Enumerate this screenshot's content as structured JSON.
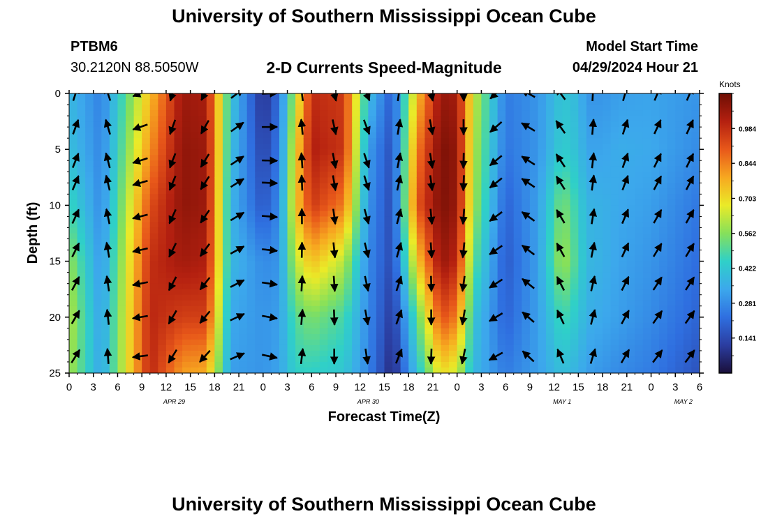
{
  "header": {
    "title": "University of Southern Mississippi Ocean Cube",
    "station": "PTBM6",
    "coords": "30.2120N  88.5050W",
    "subtitle": "2-D Currents Speed-Magnitude",
    "model_start_label": "Model Start Time",
    "model_start_value": "04/29/2024 Hour 21"
  },
  "footer": {
    "title": "University of Southern Mississippi Ocean Cube"
  },
  "chart_data": {
    "type": "heatmap",
    "title": "2-D Currents Speed-Magnitude",
    "xlabel": "Forecast Time(Z)",
    "ylabel": "Depth (ft)",
    "x_unit": "hours since APR 29 00Z",
    "x_range": [
      0,
      78
    ],
    "x_ticks": [
      0,
      3,
      6,
      9,
      12,
      15,
      18,
      21,
      24,
      27,
      30,
      33,
      36,
      39,
      42,
      45,
      48,
      51,
      54,
      57,
      60,
      63,
      66,
      69,
      72,
      75,
      78
    ],
    "x_tick_labels": [
      "0",
      "3",
      "6",
      "9",
      "12",
      "15",
      "18",
      "21",
      "0",
      "3",
      "6",
      "9",
      "12",
      "15",
      "18",
      "21",
      "0",
      "3",
      "6",
      "9",
      "12",
      "15",
      "18",
      "21",
      "0",
      "3",
      "6"
    ],
    "date_labels": [
      {
        "x": 13,
        "label": "APR 29"
      },
      {
        "x": 37,
        "label": "APR 30"
      },
      {
        "x": 61,
        "label": "MAY 1"
      },
      {
        "x": 76,
        "label": "MAY 2"
      }
    ],
    "y_range": [
      0,
      25
    ],
    "y_ticks": [
      0,
      5,
      10,
      15,
      20,
      25
    ],
    "y_tick_labels": [
      "0",
      "5",
      "10",
      "15",
      "20",
      "25"
    ],
    "colorbar": {
      "unit": "Knots",
      "min": 0.0,
      "max": 1.125,
      "ticks": [
        0.141,
        0.281,
        0.422,
        0.562,
        0.703,
        0.844,
        0.984
      ],
      "tick_labels": [
        "0.141",
        "0.281",
        "0.422",
        "0.562",
        "0.703",
        "0.844",
        "0.984"
      ],
      "colors": [
        "#1a0f3a",
        "#2b3da0",
        "#2f6fe0",
        "#3ca8ec",
        "#2fd0c8",
        "#86e05a",
        "#eaea28",
        "#f7a820",
        "#e8581a",
        "#b42010",
        "#6e0e04"
      ]
    },
    "speed_field": {
      "time_nodes": [
        0,
        4,
        10,
        14,
        17,
        20,
        24,
        26,
        28,
        30,
        34,
        37,
        40,
        43,
        46,
        48,
        50,
        54,
        58,
        61,
        63,
        64,
        66,
        68,
        72,
        78
      ],
      "depth_nodes": [
        0,
        5,
        10,
        15,
        20,
        25
      ],
      "grid": [
        [
          0.38,
          0.4,
          0.47,
          0.58,
          0.62,
          0.6
        ],
        [
          0.26,
          0.27,
          0.28,
          0.3,
          0.32,
          0.33
        ],
        [
          0.75,
          0.82,
          0.92,
          0.98,
          1.0,
          1.0
        ],
        [
          1.05,
          1.07,
          1.07,
          1.04,
          0.95,
          0.8
        ],
        [
          1.03,
          1.05,
          1.05,
          1.02,
          0.95,
          0.78
        ],
        [
          0.42,
          0.4,
          0.37,
          0.38,
          0.34,
          0.32
        ],
        [
          0.08,
          0.12,
          0.17,
          0.28,
          0.3,
          0.3
        ],
        [
          0.23,
          0.25,
          0.28,
          0.3,
          0.32,
          0.33
        ],
        [
          0.62,
          0.7,
          0.72,
          0.62,
          0.5,
          0.45
        ],
        [
          0.99,
          1.02,
          0.96,
          0.75,
          0.55,
          0.45
        ],
        [
          0.96,
          0.97,
          0.85,
          0.62,
          0.48,
          0.42
        ],
        [
          0.4,
          0.32,
          0.3,
          0.28,
          0.28,
          0.27
        ],
        [
          0.18,
          0.15,
          0.14,
          0.14,
          0.1,
          0.06
        ],
        [
          0.74,
          0.84,
          0.9,
          0.72,
          0.5,
          0.4
        ],
        [
          1.06,
          1.1,
          1.1,
          1.06,
          0.92,
          0.7
        ],
        [
          1.04,
          1.07,
          1.06,
          1.0,
          0.85,
          0.64
        ],
        [
          0.65,
          0.62,
          0.6,
          0.52,
          0.42,
          0.38
        ],
        [
          0.25,
          0.24,
          0.2,
          0.18,
          0.2,
          0.25
        ],
        [
          0.3,
          0.3,
          0.32,
          0.32,
          0.32,
          0.32
        ],
        [
          0.42,
          0.44,
          0.55,
          0.6,
          0.48,
          0.4
        ],
        [
          0.38,
          0.4,
          0.45,
          0.47,
          0.42,
          0.36
        ],
        [
          0.3,
          0.33,
          0.37,
          0.38,
          0.36,
          0.32
        ],
        [
          0.3,
          0.33,
          0.36,
          0.36,
          0.34,
          0.3
        ],
        [
          0.32,
          0.35,
          0.34,
          0.33,
          0.32,
          0.28
        ],
        [
          0.33,
          0.34,
          0.32,
          0.3,
          0.28,
          0.25
        ],
        [
          0.3,
          0.28,
          0.24,
          0.22,
          0.2,
          0.16
        ]
      ]
    },
    "direction_field": {
      "time_nodes": [
        0,
        5,
        10,
        16,
        20,
        24,
        26,
        28,
        31,
        36,
        40,
        44,
        50,
        55,
        60,
        64,
        70,
        78
      ],
      "angles_deg_from_north": [
        25,
        340,
        200,
        215,
        60,
        95,
        45,
        0,
        175,
        165,
        15,
        175,
        190,
        300,
        330,
        10,
        30,
        30
      ],
      "depths": [
        0,
        3,
        6,
        8,
        11,
        14,
        17,
        20,
        23.5
      ]
    }
  }
}
